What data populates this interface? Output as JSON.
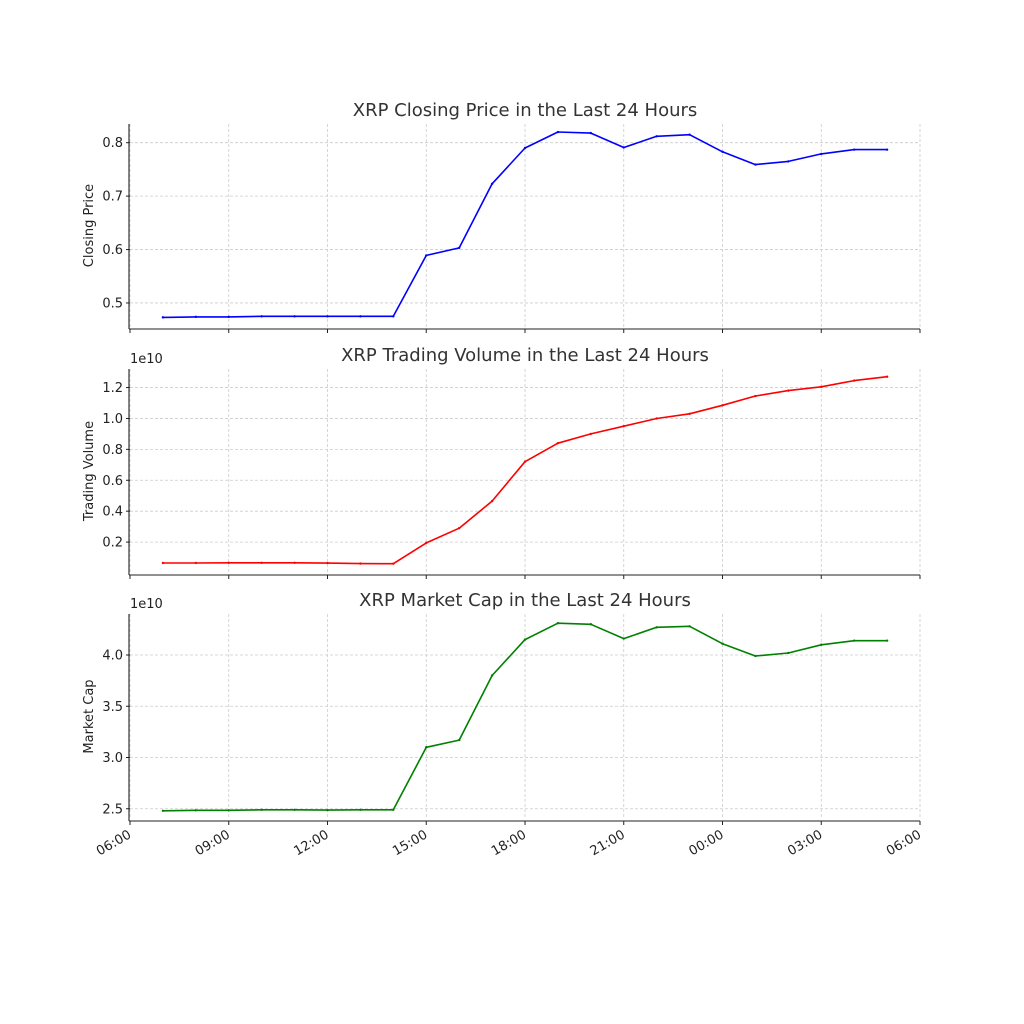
{
  "x_time_labels": [
    "07:00",
    "08:00",
    "09:00",
    "10:00",
    "11:00",
    "12:00",
    "13:00",
    "14:00",
    "15:00",
    "16:00",
    "17:00",
    "18:00",
    "19:00",
    "20:00",
    "21:00",
    "22:00",
    "23:00",
    "00:00",
    "01:00",
    "02:00",
    "03:00",
    "04:00",
    "05:00"
  ],
  "x_ticks": [
    "06:00",
    "09:00",
    "12:00",
    "15:00",
    "18:00",
    "21:00",
    "00:00",
    "03:00",
    "06:00"
  ],
  "chart_data": [
    {
      "type": "line",
      "title": "XRP Closing Price in the Last 24 Hours",
      "ylabel": "Closing Price",
      "xlabel": "",
      "offset_text": "",
      "color": "#0000ff",
      "grid": true,
      "ylim": [
        0.455,
        0.835
      ],
      "yticks": [
        0.5,
        0.6,
        0.7,
        0.8
      ],
      "ytick_labels": [
        "0.5",
        "0.6",
        "0.7",
        "0.8"
      ],
      "x": [
        "07:00",
        "08:00",
        "09:00",
        "10:00",
        "11:00",
        "12:00",
        "13:00",
        "14:00",
        "15:00",
        "16:00",
        "17:00",
        "18:00",
        "19:00",
        "20:00",
        "21:00",
        "22:00",
        "23:00",
        "00:00",
        "01:00",
        "02:00",
        "03:00",
        "04:00",
        "05:00"
      ],
      "values": [
        0.473,
        0.474,
        0.474,
        0.475,
        0.475,
        0.475,
        0.475,
        0.475,
        0.589,
        0.603,
        0.723,
        0.79,
        0.82,
        0.818,
        0.791,
        0.812,
        0.815,
        0.783,
        0.759,
        0.765,
        0.779,
        0.787,
        0.787
      ]
    },
    {
      "type": "line",
      "title": "XRP Trading Volume in the Last 24 Hours",
      "ylabel": "Trading Volume",
      "xlabel": "",
      "offset_text": "1e10",
      "color": "#ff0000",
      "grid": true,
      "ylim": [
        0.0,
        1.32
      ],
      "yticks": [
        0.2,
        0.4,
        0.6,
        0.8,
        1.0,
        1.2
      ],
      "ytick_labels": [
        "0.2",
        "0.4",
        "0.6",
        "0.8",
        "1.0",
        "1.2"
      ],
      "x": [
        "07:00",
        "08:00",
        "09:00",
        "10:00",
        "11:00",
        "12:00",
        "13:00",
        "14:00",
        "15:00",
        "16:00",
        "17:00",
        "18:00",
        "19:00",
        "20:00",
        "21:00",
        "22:00",
        "23:00",
        "00:00",
        "01:00",
        "02:00",
        "03:00",
        "04:00",
        "05:00"
      ],
      "values": [
        0.065,
        0.065,
        0.066,
        0.066,
        0.066,
        0.064,
        0.061,
        0.06,
        0.195,
        0.29,
        0.465,
        0.72,
        0.84,
        0.9,
        0.95,
        1.0,
        1.03,
        1.085,
        1.145,
        1.18,
        1.205,
        1.245,
        1.27
      ]
    },
    {
      "type": "line",
      "title": "XRP Market Cap in the Last 24 Hours",
      "ylabel": "Market Cap",
      "xlabel": "",
      "offset_text": "1e10",
      "color": "#008000",
      "grid": true,
      "ylim": [
        2.4,
        4.4
      ],
      "yticks": [
        2.5,
        3.0,
        3.5,
        4.0
      ],
      "ytick_labels": [
        "2.5",
        "3.0",
        "3.5",
        "4.0"
      ],
      "x": [
        "07:00",
        "08:00",
        "09:00",
        "10:00",
        "11:00",
        "12:00",
        "13:00",
        "14:00",
        "15:00",
        "16:00",
        "17:00",
        "18:00",
        "19:00",
        "20:00",
        "21:00",
        "22:00",
        "23:00",
        "00:00",
        "01:00",
        "02:00",
        "03:00",
        "04:00",
        "05:00"
      ],
      "values": [
        2.48,
        2.485,
        2.485,
        2.49,
        2.49,
        2.487,
        2.49,
        2.49,
        3.1,
        3.17,
        3.8,
        4.15,
        4.31,
        4.3,
        4.16,
        4.27,
        4.28,
        4.11,
        3.99,
        4.02,
        4.1,
        4.14,
        4.14
      ]
    }
  ]
}
